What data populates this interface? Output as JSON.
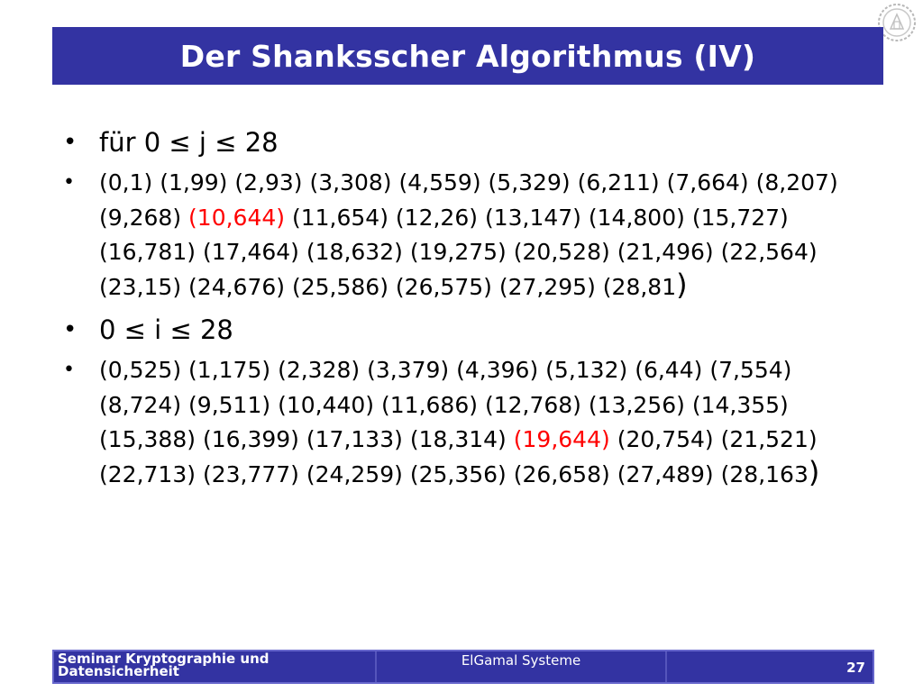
{
  "slide": {
    "title": "Der Shanksscher Algorithmus (IV)",
    "bullets": [
      {
        "text": "für 0 ≤ j ≤ 28"
      },
      {
        "pairs": [
          "(0,1)",
          "(1,99)",
          "(2,93)",
          "(3,308)",
          "(4,559)",
          "(5,329)",
          "(6,211)",
          "(7,664)",
          "(8,207)",
          "(9,268)",
          "(10,644)",
          "(11,654)",
          "(12,26)",
          "(13,147)",
          "(14,800)",
          "(15,727)",
          "(16,781)",
          "(17,464)",
          "(18,632)",
          "(19,275)",
          "(20,528)",
          "(21,496)",
          "(22,564)",
          "(23,15)",
          "(24,676)",
          "(25,586)",
          "(26,575)",
          "(27,295)",
          "(28,81"
        ],
        "closing": ")",
        "highlight_index": 10
      },
      {
        "text": "0 ≤ i ≤ 28"
      },
      {
        "pairs": [
          "(0,525)",
          "(1,175)",
          "(2,328)",
          "(3,379)",
          "(4,396)",
          "(5,132)",
          "(6,44)",
          "(7,554)",
          "(8,724)",
          "(9,511)",
          "(10,440)",
          "(11,686)",
          "(12,768)",
          "(13,256)",
          "(14,355)",
          "(15,388)",
          "(16,399)",
          "(17,133)",
          "(18,314)",
          "(19,644)",
          "(20,754)",
          "(21,521)",
          "(22,713)",
          "(23,777)",
          "(24,259)",
          "(25,356)",
          "(26,658)",
          "(27,489)",
          "(28,163"
        ],
        "closing": ")",
        "highlight_index": 19
      }
    ]
  },
  "footer": {
    "left_line1": "Seminar Kryptographie und",
    "left_line2": "Datensicherheit",
    "center": "ElGamal Systeme",
    "page": "27"
  },
  "colors": {
    "bar": "#3333a2",
    "highlight": "#ff0000"
  },
  "icons": {
    "logo": "gear-seal-icon",
    "bullet": "bullet-dot-icon"
  }
}
